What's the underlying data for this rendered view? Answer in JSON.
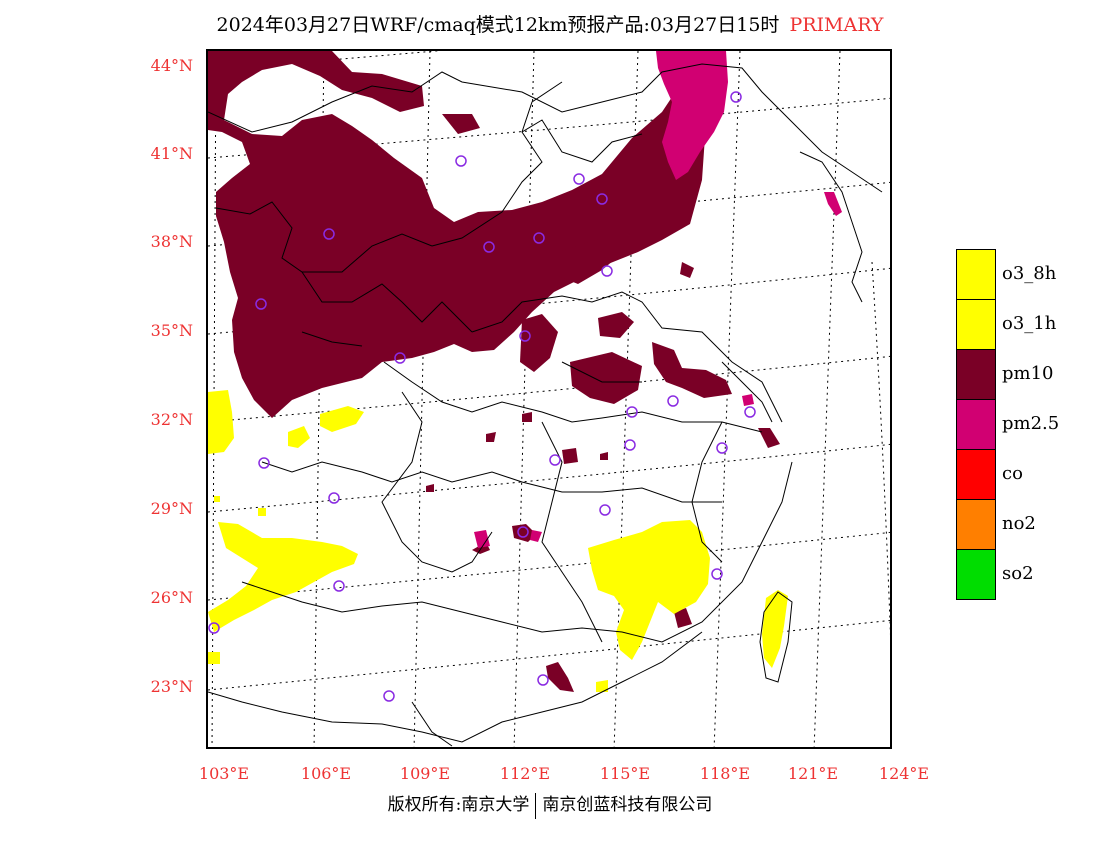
{
  "title": {
    "main": "2024年03月27日WRF/cmaq模式12km预报产品:03月27日15时",
    "tag": "PRIMARY"
  },
  "axes": {
    "lat_labels": [
      "44°N",
      "41°N",
      "38°N",
      "35°N",
      "32°N",
      "29°N",
      "26°N",
      "23°N"
    ],
    "lon_labels": [
      "103°E",
      "106°E",
      "109°E",
      "112°E",
      "115°E",
      "118°E",
      "121°E",
      "124°E"
    ]
  },
  "legend": {
    "items": [
      {
        "label": "o3_8h",
        "color": "#ffff00"
      },
      {
        "label": "o3_1h",
        "color": "#ffff00"
      },
      {
        "label": "pm10",
        "color": "#7a0026"
      },
      {
        "label": "pm2.5",
        "color": "#d10072"
      },
      {
        "label": "co",
        "color": "#ff0000"
      },
      {
        "label": "no2",
        "color": "#ff7f00"
      },
      {
        "label": "so2",
        "color": "#00dd00"
      }
    ]
  },
  "footer": {
    "left": "版权所有:南京大学",
    "right": "南京创蓝科技有限公司"
  },
  "map": {
    "colors": {
      "pm10": "#7a0026",
      "pm25": "#d10072",
      "o3": "#ffff00",
      "station": "#8a2be2",
      "boundary": "#000000"
    }
  }
}
